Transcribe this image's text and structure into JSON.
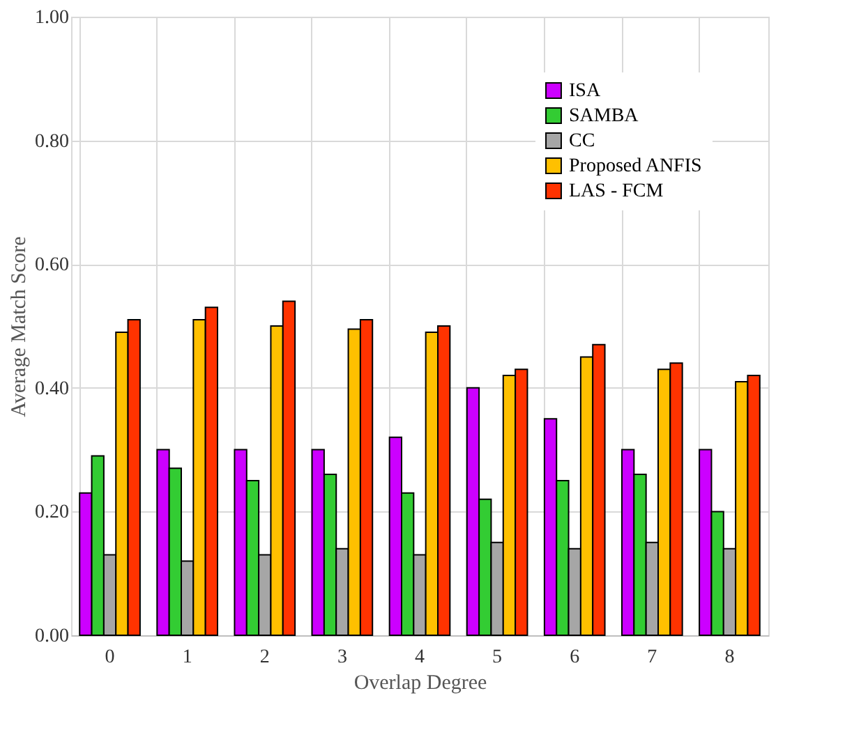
{
  "chart_data": {
    "type": "bar",
    "xlabel": "Overlap Degree",
    "ylabel": "Average Match Score",
    "categories": [
      "0",
      "1",
      "2",
      "3",
      "4",
      "5",
      "6",
      "7",
      "8"
    ],
    "series": [
      {
        "name": "ISA",
        "color": "#cc00ff",
        "values": [
          0.23,
          0.3,
          0.3,
          0.3,
          0.32,
          0.4,
          0.35,
          0.3,
          0.3
        ]
      },
      {
        "name": "SAMBA",
        "color": "#33cc33",
        "values": [
          0.29,
          0.27,
          0.25,
          0.26,
          0.23,
          0.22,
          0.25,
          0.26,
          0.2
        ]
      },
      {
        "name": "CC",
        "color": "#a6a6a6",
        "values": [
          0.13,
          0.12,
          0.13,
          0.14,
          0.13,
          0.15,
          0.14,
          0.15,
          0.14
        ]
      },
      {
        "name": "Proposed ANFIS",
        "color": "#ffc000",
        "values": [
          0.49,
          0.51,
          0.5,
          0.495,
          0.49,
          0.42,
          0.45,
          0.43,
          0.41
        ]
      },
      {
        "name": "LAS - FCM",
        "color": "#ff3300",
        "values": [
          0.51,
          0.53,
          0.54,
          0.51,
          0.5,
          0.43,
          0.47,
          0.44,
          0.42
        ]
      }
    ],
    "ylim": [
      0,
      1
    ],
    "yticks": [
      {
        "value": 0,
        "label": "0.00"
      },
      {
        "value": 0.2,
        "label": "0.20"
      },
      {
        "value": 0.4,
        "label": "0.40"
      },
      {
        "value": 0.6,
        "label": "0.60"
      },
      {
        "value": 0.8,
        "label": "0.80"
      },
      {
        "value": 1,
        "label": "1.00"
      }
    ],
    "grid": true,
    "legend": "top right"
  }
}
